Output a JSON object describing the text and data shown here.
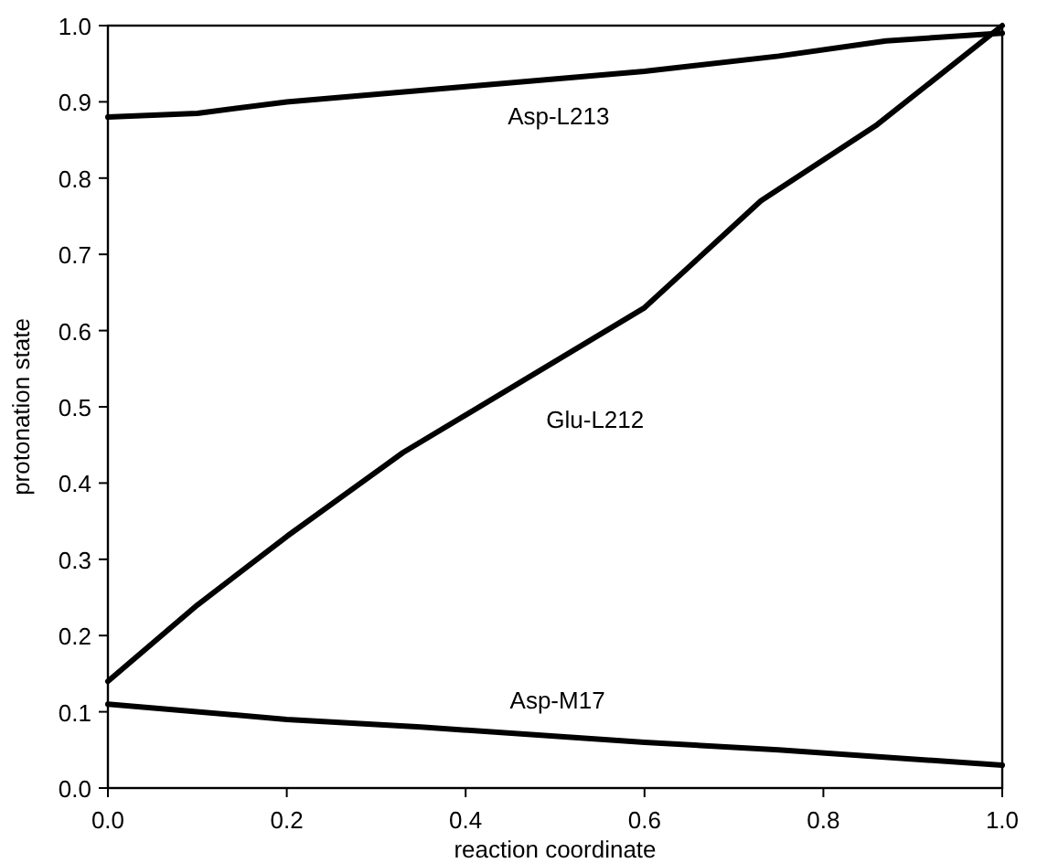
{
  "chart_data": {
    "type": "line",
    "xlabel": "reaction coordinate",
    "ylabel": "protonation state",
    "xlim": [
      0,
      1
    ],
    "xticks": [
      {
        "value": 0,
        "label": "0.0"
      },
      0.2,
      0.4,
      0.6,
      0.8,
      {
        "value": 1,
        "label": "1.0"
      }
    ],
    "ylim": [
      0,
      1
    ],
    "yticks": [
      {
        "value": 0,
        "label": "0.0"
      },
      0.1,
      0.2,
      0.3,
      0.4,
      0.5,
      0.6,
      0.7,
      0.8,
      0.9,
      {
        "value": 1,
        "label": "1.0"
      }
    ],
    "grid": false,
    "marker": "none",
    "line_style": "solid",
    "series": [
      {
        "name": "Asp-L213",
        "color": "#000000",
        "x": [
          0,
          0.1,
          0.2,
          0.4,
          0.6,
          0.75,
          0.87,
          1
        ],
        "values": [
          0.88,
          0.885,
          0.9,
          0.92,
          0.94,
          0.96,
          0.98,
          0.99
        ]
      },
      {
        "name": "Glu-L212",
        "color": "#000000",
        "x": [
          0,
          0.1,
          0.2,
          0.33,
          0.6,
          0.73,
          0.86,
          1
        ],
        "values": [
          0.14,
          0.24,
          0.33,
          0.44,
          0.63,
          0.77,
          0.87,
          1
        ]
      },
      {
        "name": "Asp-M17",
        "color": "#000000",
        "x": [
          0,
          0.2,
          0.35,
          0.6,
          0.75,
          1
        ],
        "values": [
          0.11,
          0.09,
          0.08,
          0.06,
          0.05,
          0.03
        ]
      }
    ]
  }
}
